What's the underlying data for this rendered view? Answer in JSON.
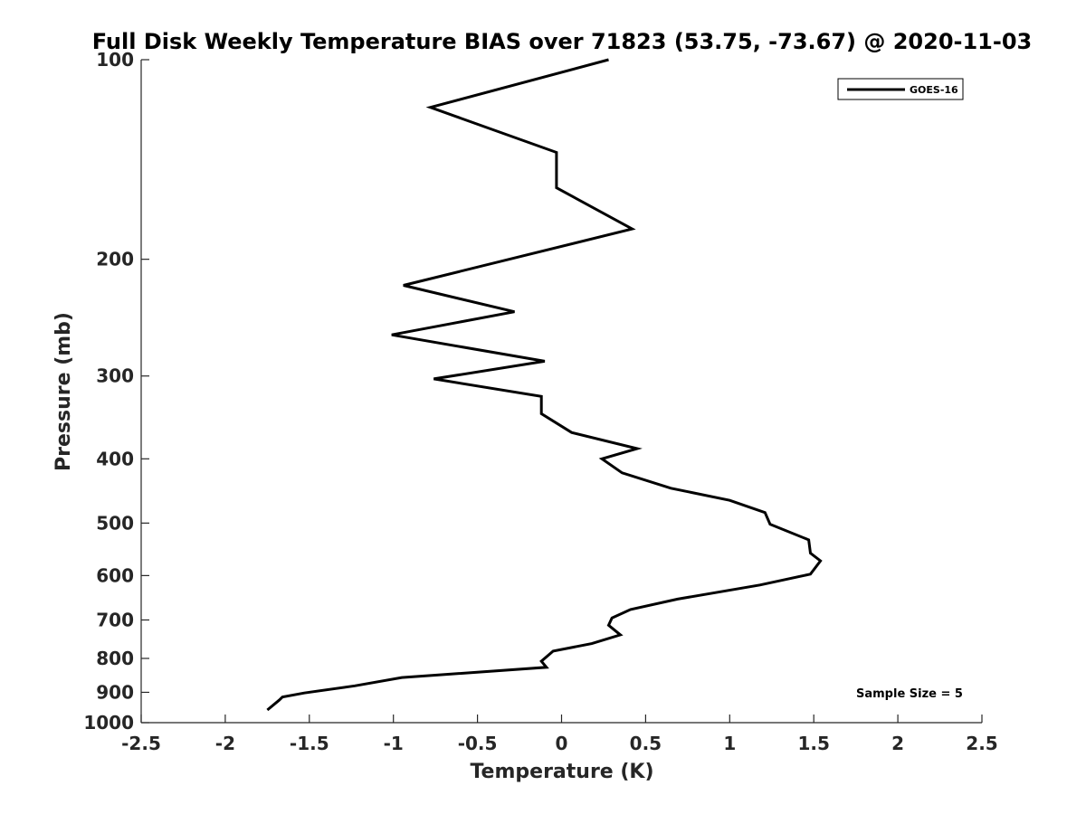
{
  "chart_data": {
    "type": "line",
    "title": "Full Disk Weekly Temperature BIAS over 71823 (53.75, -73.67) @ 2020-11-03",
    "xlabel": "Temperature (K)",
    "ylabel": "Pressure (mb)",
    "xlim": [
      -2.5,
      2.5
    ],
    "ylim": [
      1000,
      100
    ],
    "y_scale": "log",
    "y_reversed": true,
    "x_ticks": [
      "-2.5",
      "-2",
      "-1.5",
      "-1",
      "-0.5",
      "0",
      "0.5",
      "1",
      "1.5",
      "2",
      "2.5"
    ],
    "y_ticks": [
      "100",
      "200",
      "300",
      "400",
      "500",
      "600",
      "700",
      "800",
      "900",
      "1000"
    ],
    "grid": false,
    "legend_position": "top-right",
    "line_color": "#000000",
    "series": [
      {
        "name": "GOES-16",
        "x": [
          0.28,
          -0.78,
          -0.03,
          -0.03,
          0.42,
          -0.94,
          -0.28,
          -1.01,
          -0.1,
          -0.76,
          -0.12,
          -0.12,
          0.06,
          0.45,
          0.24,
          0.36,
          0.65,
          1.0,
          1.21,
          1.24,
          1.47,
          1.48,
          1.54,
          1.48,
          1.18,
          0.69,
          0.41,
          0.3,
          0.28,
          0.35,
          0.18,
          -0.05,
          -0.12,
          -0.09,
          -0.95,
          -1.23,
          -1.53,
          -1.66,
          -1.68,
          -1.75
        ],
        "y": [
          100,
          118,
          138,
          156,
          180,
          219,
          240,
          260,
          285,
          303,
          322,
          342,
          365,
          386,
          400,
          420,
          443,
          462,
          482,
          502,
          530,
          555,
          570,
          597,
          620,
          651,
          675,
          695,
          713,
          737,
          760,
          780,
          808,
          825,
          855,
          880,
          902,
          915,
          925,
          957
        ]
      }
    ],
    "annotations": [
      "Sample Size = 5"
    ]
  }
}
